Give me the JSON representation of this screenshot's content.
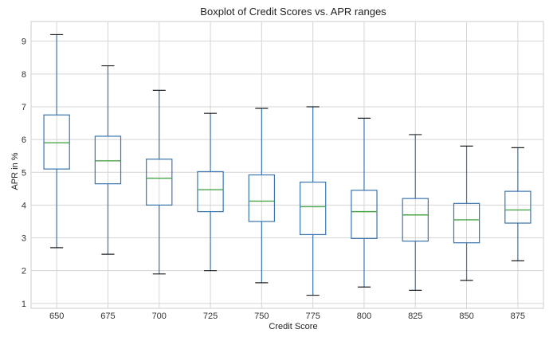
{
  "chart_data": {
    "type": "boxplot",
    "title": "Boxplot of Credit Scores vs. APR ranges",
    "xlabel": "Credit Score",
    "ylabel": "APR in %",
    "ylim": [
      0.85,
      9.6
    ],
    "yticks": [
      1,
      2,
      3,
      4,
      5,
      6,
      7,
      8,
      9
    ],
    "grid": true,
    "colors": {
      "box": "#3b75af",
      "median": "#4aa64a",
      "whisker_cap": "#222222",
      "grid": "#d5d5d5"
    },
    "categories": [
      "650",
      "675",
      "700",
      "725",
      "750",
      "775",
      "800",
      "825",
      "850",
      "875"
    ],
    "boxes": [
      {
        "whislo": 2.7,
        "q1": 5.1,
        "med": 5.9,
        "q3": 6.75,
        "whishi": 9.2
      },
      {
        "whislo": 2.5,
        "q1": 4.65,
        "med": 5.35,
        "q3": 6.1,
        "whishi": 8.25
      },
      {
        "whislo": 1.9,
        "q1": 4.0,
        "med": 4.82,
        "q3": 5.4,
        "whishi": 7.5
      },
      {
        "whislo": 2.0,
        "q1": 3.8,
        "med": 4.47,
        "q3": 5.02,
        "whishi": 6.8
      },
      {
        "whislo": 1.63,
        "q1": 3.5,
        "med": 4.12,
        "q3": 4.92,
        "whishi": 6.95
      },
      {
        "whislo": 1.25,
        "q1": 3.1,
        "med": 3.95,
        "q3": 4.7,
        "whishi": 7.0
      },
      {
        "whislo": 1.5,
        "q1": 2.98,
        "med": 3.8,
        "q3": 4.45,
        "whishi": 6.65
      },
      {
        "whislo": 1.4,
        "q1": 2.9,
        "med": 3.7,
        "q3": 4.2,
        "whishi": 6.15
      },
      {
        "whislo": 1.7,
        "q1": 2.85,
        "med": 3.55,
        "q3": 4.05,
        "whishi": 5.8
      },
      {
        "whislo": 2.3,
        "q1": 3.45,
        "med": 3.85,
        "q3": 4.42,
        "whishi": 5.75
      }
    ]
  }
}
